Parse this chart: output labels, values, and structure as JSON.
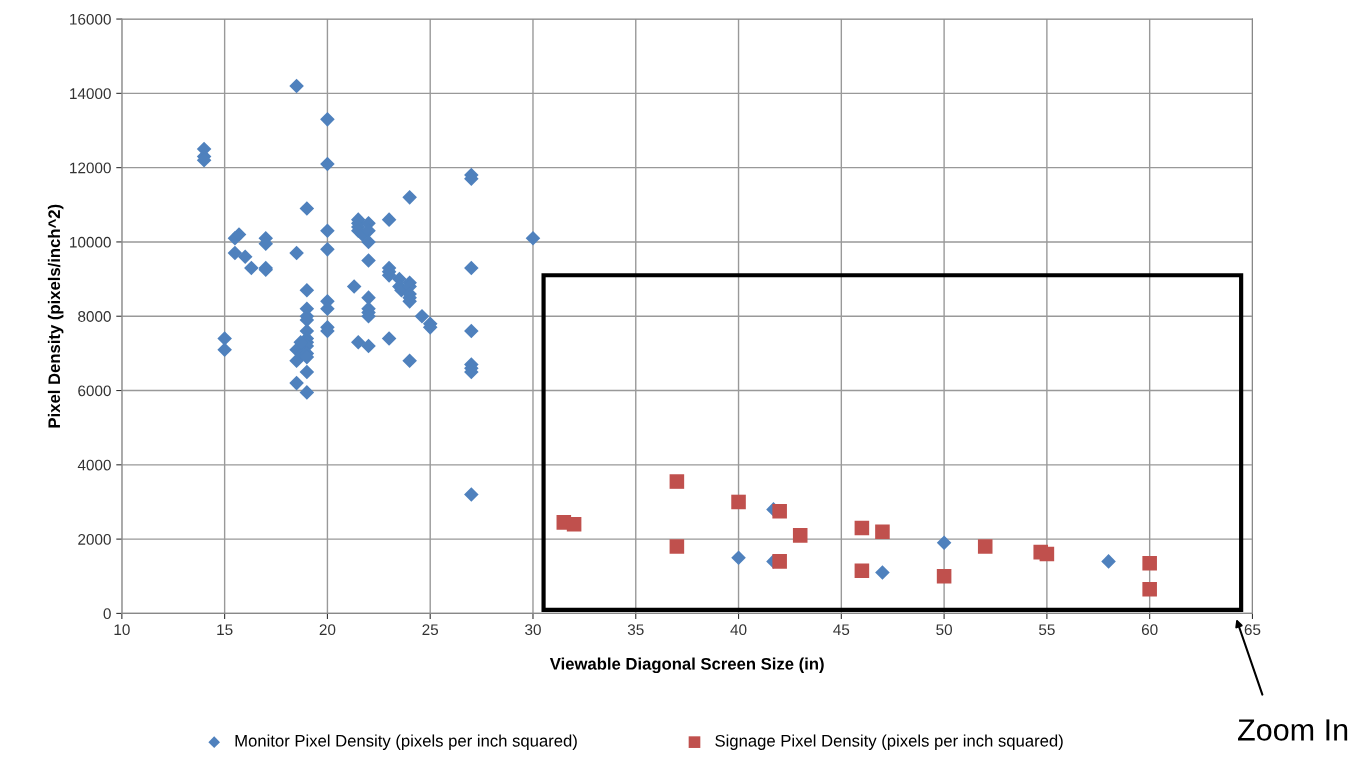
{
  "chart_data": {
    "type": "scatter",
    "xlabel": "Viewable Diagonal Screen Size (in)",
    "ylabel": "Pixel Density (pixels/inch^2)",
    "xlim": [
      10,
      65
    ],
    "xticks": [
      10,
      15,
      20,
      25,
      30,
      35,
      40,
      45,
      50,
      55,
      60,
      65
    ],
    "ylim": [
      0,
      16000
    ],
    "yticks": [
      0,
      2000,
      4000,
      6000,
      8000,
      10000,
      12000,
      14000,
      16000
    ],
    "grid": true,
    "legend": "bottom",
    "annotations": [
      "Zoom In"
    ],
    "series": [
      {
        "name": "Monitor Pixel Density (pixels per inch squared)",
        "color": "#4f81bd",
        "marker": "diamond",
        "x": [
          14,
          14,
          14,
          15,
          15,
          15.5,
          15.7,
          15.5,
          16,
          16.3,
          17,
          17,
          17,
          17,
          18.5,
          18.5,
          18.5,
          18.5,
          18.5,
          18.8,
          19,
          19,
          19,
          19,
          19,
          19,
          19,
          19,
          19,
          19,
          19,
          19,
          19,
          18.7,
          20,
          20,
          20,
          20,
          20,
          20,
          20,
          20,
          21.3,
          21.5,
          21.5,
          21.5,
          21.5,
          21.7,
          22,
          22,
          22,
          21.5,
          22,
          22,
          22,
          22,
          22,
          22,
          23,
          23,
          23,
          23,
          23,
          23.5,
          23.5,
          23.6,
          24,
          24,
          24,
          24,
          24,
          24,
          24,
          24.6,
          25,
          25,
          27,
          27,
          27,
          27,
          27,
          27,
          27,
          27,
          30,
          41.7,
          40,
          41.7,
          47,
          50,
          58
        ],
        "values": [
          12500,
          12300,
          12200,
          7400,
          7100,
          10100,
          10200,
          9700,
          9600,
          9300,
          10100,
          9950,
          9300,
          9250,
          14200,
          9700,
          7100,
          6800,
          6200,
          7000,
          10900,
          8700,
          8200,
          8000,
          7900,
          7600,
          7400,
          7300,
          7200,
          7000,
          6900,
          6500,
          5950,
          7300,
          13300,
          12100,
          10300,
          9800,
          8400,
          8200,
          7700,
          7600,
          8800,
          10500,
          10600,
          10400,
          10300,
          10200,
          10500,
          10300,
          10000,
          7300,
          9500,
          8500,
          8200,
          8100,
          8000,
          7200,
          10600,
          9300,
          9200,
          9100,
          7400,
          9000,
          8800,
          8700,
          8900,
          8800,
          8600,
          8500,
          8400,
          11200,
          6800,
          8000,
          7800,
          7700,
          11800,
          11700,
          9300,
          7600,
          6700,
          6600,
          6500,
          3200,
          10100,
          2800,
          1500,
          1400,
          1100,
          1900,
          1400
        ]
      },
      {
        "name": "Signage Pixel Density (pixels per inch squared)",
        "color": "#c0504d",
        "marker": "square",
        "x": [
          31.5,
          32,
          37,
          37,
          40,
          42,
          42,
          43,
          46,
          46,
          47,
          50,
          52,
          54.7,
          55,
          60,
          60
        ],
        "values": [
          2450,
          2400,
          3550,
          1800,
          3000,
          2750,
          1400,
          2100,
          2300,
          1150,
          2200,
          1000,
          1800,
          1650,
          1600,
          1350,
          650
        ]
      }
    ]
  }
}
